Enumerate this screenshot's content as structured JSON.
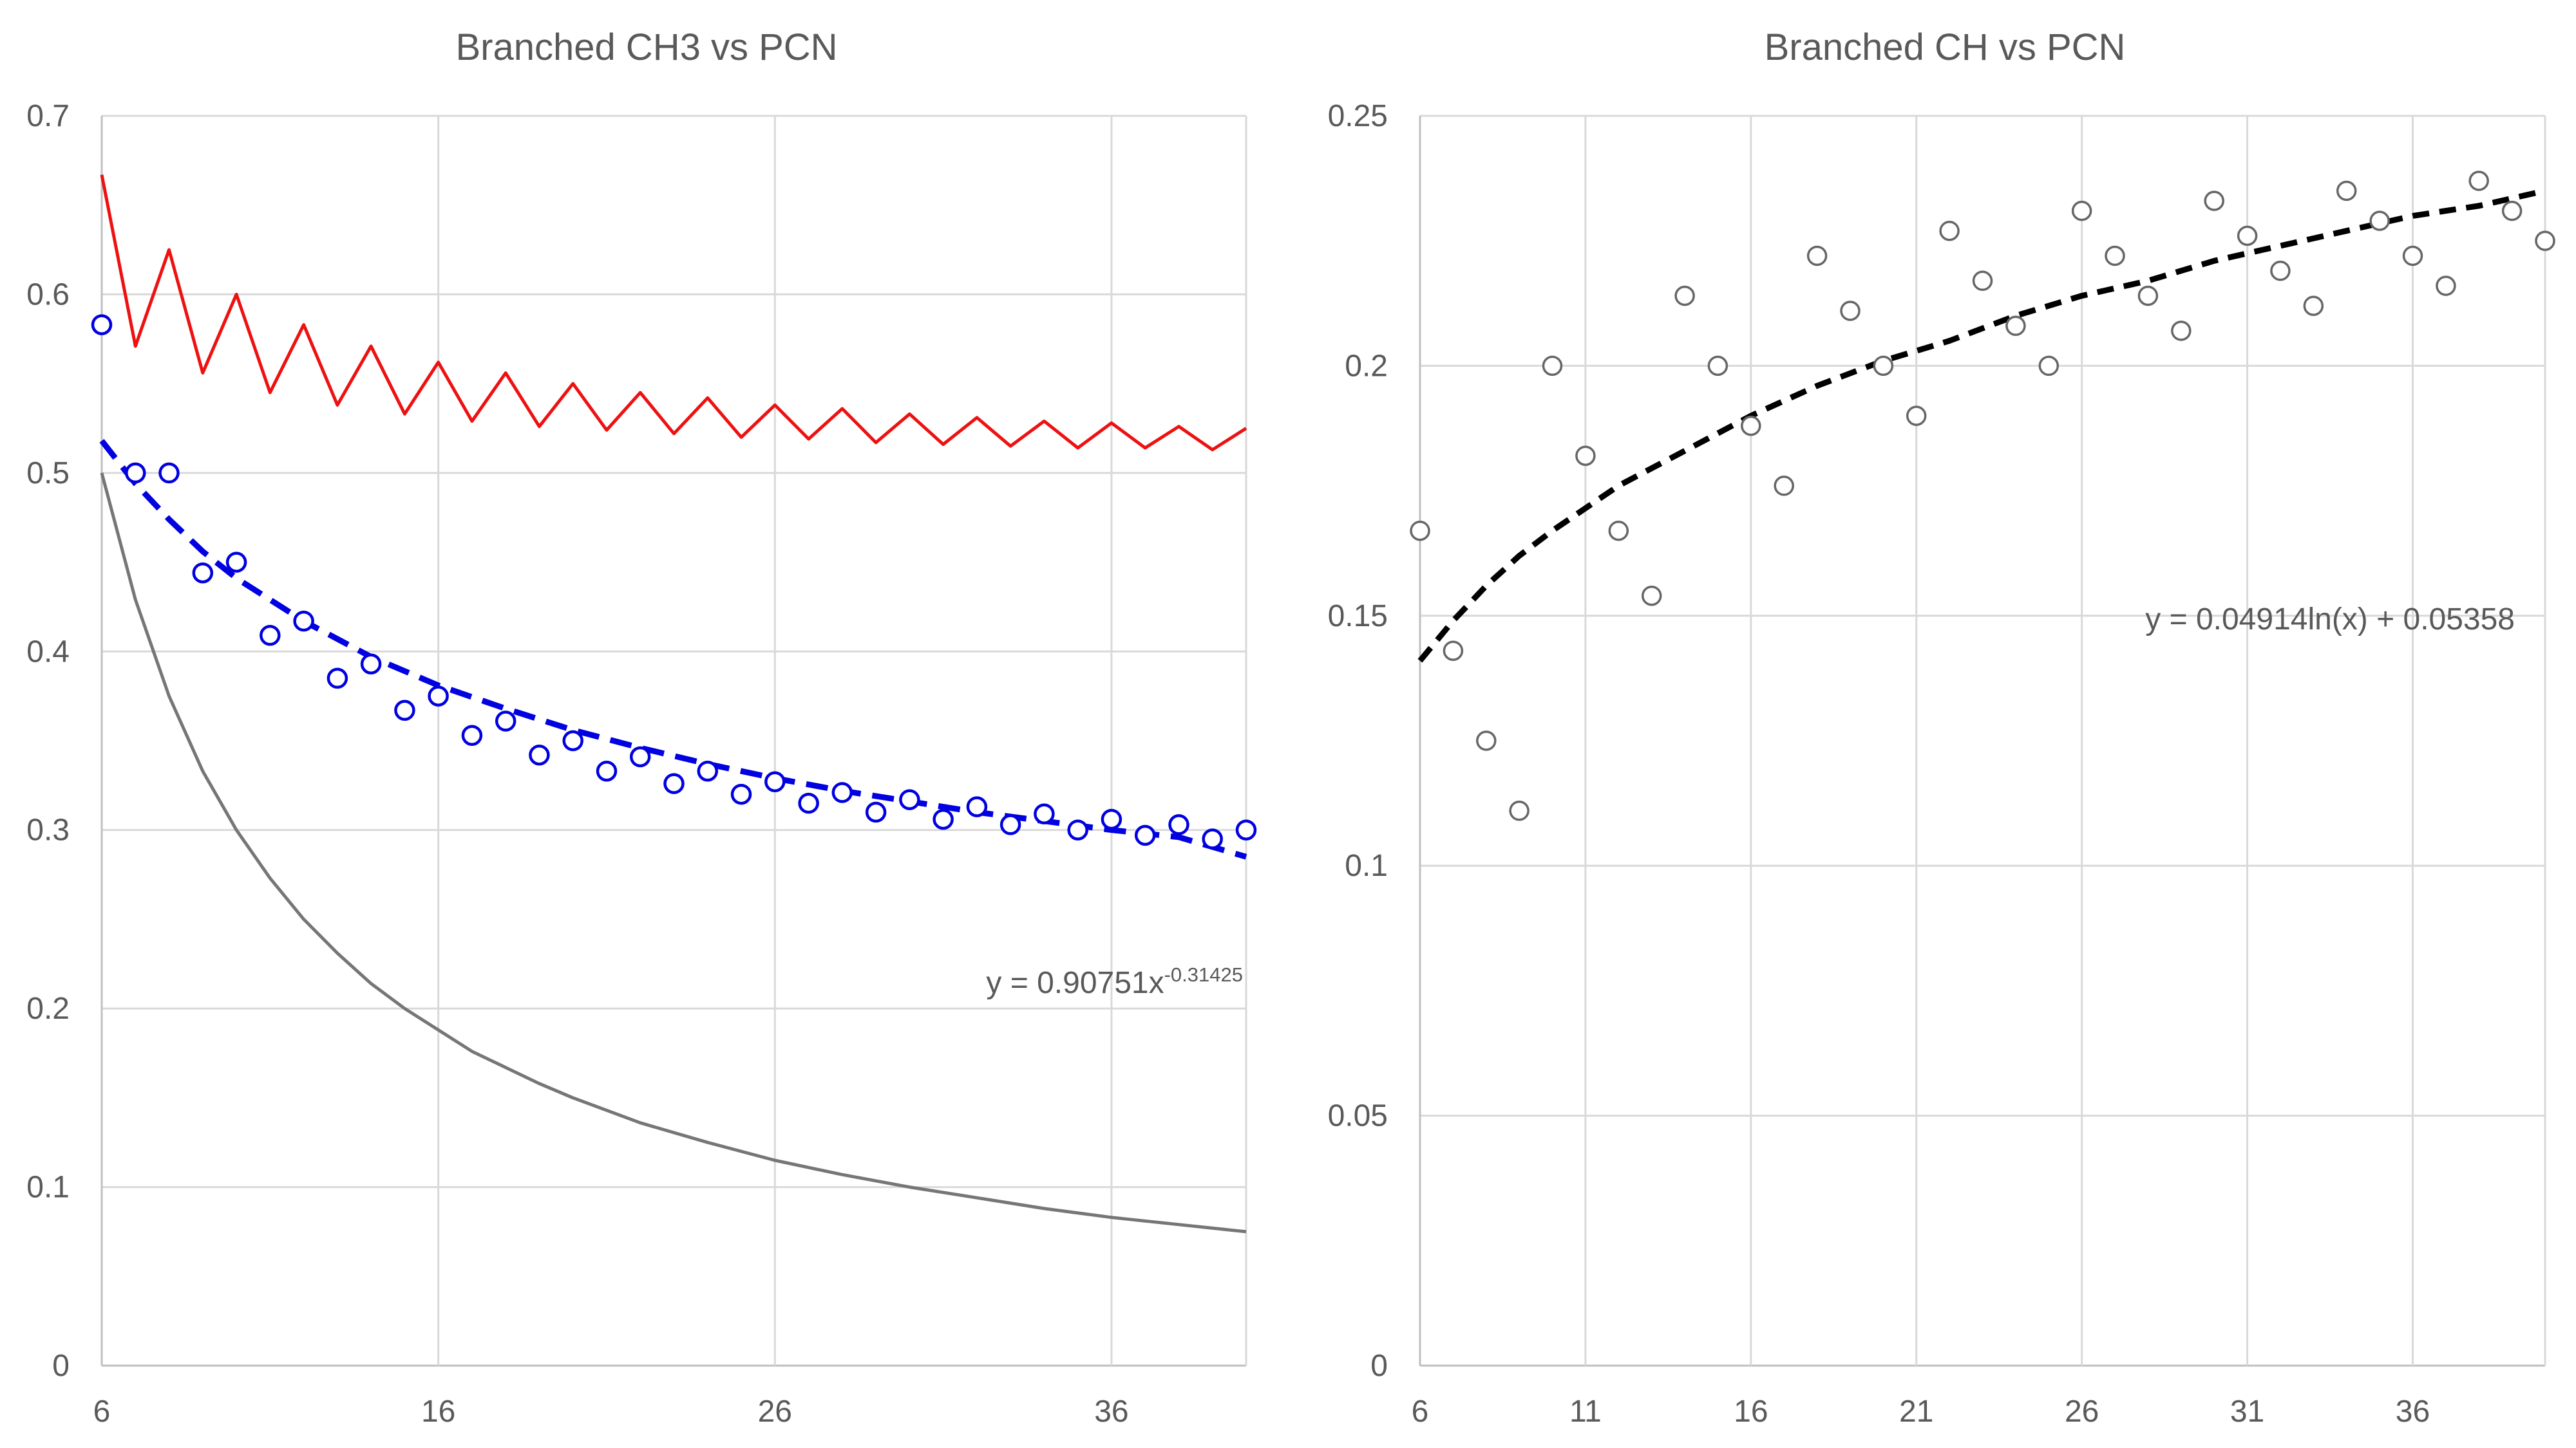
{
  "chart_data": [
    {
      "type": "scatter",
      "title": "Branched CH3 vs PCN",
      "xlabel": "",
      "ylabel": "",
      "xlim": [
        6,
        40
      ],
      "ylim": [
        0,
        0.7
      ],
      "x_ticks": [
        "6",
        "16",
        "26",
        "36"
      ],
      "y_ticks": [
        "0",
        "0.1",
        "0.2",
        "0.3",
        "0.4",
        "0.5",
        "0.6",
        "0.7"
      ],
      "grid": true,
      "legend": "none",
      "trendline_equation": {
        "base": "y = 0.90751x",
        "exponent": "-0.31425"
      },
      "colors": {
        "red": "#ee1111",
        "blue": "#0000e0",
        "gray": "#767676"
      },
      "series": [
        {
          "style": "line-red",
          "x": [
            6,
            7,
            8,
            9,
            10,
            11,
            12,
            13,
            14,
            15,
            16,
            17,
            18,
            19,
            20,
            21,
            22,
            23,
            24,
            25,
            26,
            27,
            28,
            29,
            30,
            31,
            32,
            33,
            34,
            35,
            36,
            37,
            38,
            39,
            40
          ],
          "values": [
            0.667,
            0.571,
            0.625,
            0.556,
            0.6,
            0.545,
            0.583,
            0.538,
            0.571,
            0.533,
            0.562,
            0.529,
            0.556,
            0.526,
            0.55,
            0.524,
            0.545,
            0.522,
            0.542,
            0.52,
            0.538,
            0.519,
            0.536,
            0.517,
            0.533,
            0.516,
            0.531,
            0.515,
            0.529,
            0.514,
            0.528,
            0.514,
            0.526,
            0.513,
            0.525
          ]
        },
        {
          "style": "scatter-blue-open-circle",
          "x": [
            6,
            7,
            8,
            9,
            10,
            11,
            12,
            13,
            14,
            15,
            16,
            17,
            18,
            19,
            20,
            21,
            22,
            23,
            24,
            25,
            26,
            27,
            28,
            29,
            30,
            31,
            32,
            33,
            34,
            35,
            36,
            37,
            38,
            39,
            40
          ],
          "values": [
            0.583,
            0.5,
            0.5,
            0.444,
            0.45,
            0.409,
            0.417,
            0.385,
            0.393,
            0.367,
            0.375,
            0.353,
            0.361,
            0.342,
            0.35,
            0.333,
            0.341,
            0.326,
            0.333,
            0.32,
            0.327,
            0.315,
            0.321,
            0.31,
            0.317,
            0.306,
            0.313,
            0.303,
            0.309,
            0.3,
            0.306,
            0.297,
            0.303,
            0.295,
            0.3
          ]
        },
        {
          "style": "trend-blue-dashed-power",
          "x": [
            6,
            7,
            8,
            9,
            10,
            12,
            14,
            16,
            18,
            20,
            22,
            24,
            26,
            28,
            30,
            32,
            34,
            36,
            38,
            40
          ],
          "values": [
            0.518,
            0.494,
            0.474,
            0.456,
            0.441,
            0.417,
            0.397,
            0.381,
            0.368,
            0.356,
            0.346,
            0.337,
            0.329,
            0.322,
            0.316,
            0.31,
            0.305,
            0.3,
            0.296,
            0.285
          ]
        },
        {
          "style": "line-gray",
          "x": [
            6,
            7,
            8,
            9,
            10,
            11,
            12,
            13,
            14,
            15,
            16,
            17,
            18,
            19,
            20,
            22,
            24,
            26,
            28,
            30,
            32,
            34,
            36,
            38,
            40
          ],
          "values": [
            0.5,
            0.429,
            0.375,
            0.333,
            0.3,
            0.273,
            0.25,
            0.231,
            0.214,
            0.2,
            0.188,
            0.176,
            0.167,
            0.158,
            0.15,
            0.136,
            0.125,
            0.115,
            0.107,
            0.1,
            0.094,
            0.088,
            0.083,
            0.079,
            0.075
          ]
        }
      ]
    },
    {
      "type": "scatter",
      "title": "Branched CH vs PCN",
      "xlabel": "",
      "ylabel": "",
      "xlim": [
        6,
        40
      ],
      "ylim": [
        0,
        0.25
      ],
      "x_ticks": [
        "6",
        "11",
        "16",
        "21",
        "26",
        "31",
        "36"
      ],
      "y_ticks": [
        "0",
        "0.05",
        "0.1",
        "0.15",
        "0.2",
        "0.25"
      ],
      "grid": true,
      "legend": "none",
      "trendline_equation": {
        "base": "y = 0.04914ln(x) + 0.05358",
        "exponent": ""
      },
      "colors": {
        "points": "#7f7f7f",
        "trend": "#000000"
      },
      "series": [
        {
          "style": "scatter-gray-open-circle",
          "x": [
            6,
            7,
            8,
            9,
            10,
            11,
            12,
            13,
            14,
            15,
            16,
            17,
            18,
            19,
            20,
            21,
            22,
            23,
            24,
            25,
            26,
            27,
            28,
            29,
            30,
            31,
            32,
            33,
            34,
            35,
            36,
            37,
            38,
            39,
            40
          ],
          "values": [
            0.167,
            0.143,
            0.125,
            0.111,
            0.2,
            0.182,
            0.167,
            0.154,
            0.214,
            0.2,
            0.188,
            0.176,
            0.222,
            0.211,
            0.2,
            0.19,
            0.227,
            0.217,
            0.208,
            0.2,
            0.231,
            0.222,
            0.214,
            0.207,
            0.233,
            0.226,
            0.219,
            0.212,
            0.235,
            0.229,
            0.222,
            0.216,
            0.237,
            0.231,
            0.225
          ]
        },
        {
          "style": "trend-black-dashed-log",
          "x": [
            6,
            7,
            8,
            9,
            10,
            12,
            14,
            16,
            18,
            20,
            22,
            24,
            26,
            28,
            30,
            32,
            34,
            36,
            38,
            40
          ],
          "values": [
            0.141,
            0.149,
            0.156,
            0.162,
            0.167,
            0.176,
            0.183,
            0.19,
            0.196,
            0.201,
            0.205,
            0.21,
            0.214,
            0.217,
            0.221,
            0.224,
            0.227,
            0.23,
            0.232,
            0.235
          ]
        }
      ]
    }
  ]
}
